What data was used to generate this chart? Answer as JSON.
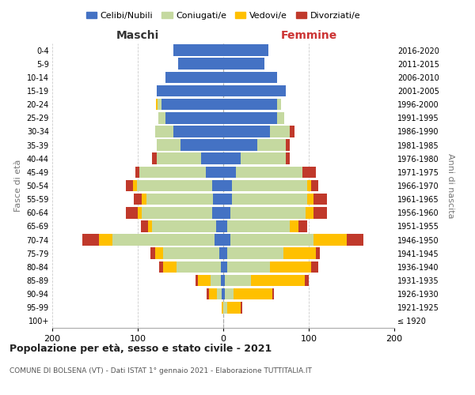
{
  "age_groups": [
    "100+",
    "95-99",
    "90-94",
    "85-89",
    "80-84",
    "75-79",
    "70-74",
    "65-69",
    "60-64",
    "55-59",
    "50-54",
    "45-49",
    "40-44",
    "35-39",
    "30-34",
    "25-29",
    "20-24",
    "15-19",
    "10-14",
    "5-9",
    "0-4"
  ],
  "birth_years": [
    "≤ 1920",
    "1921-1925",
    "1926-1930",
    "1931-1935",
    "1936-1940",
    "1941-1945",
    "1946-1950",
    "1951-1955",
    "1956-1960",
    "1961-1965",
    "1966-1970",
    "1971-1975",
    "1976-1980",
    "1981-1985",
    "1986-1990",
    "1991-1995",
    "1996-2000",
    "2001-2005",
    "2006-2010",
    "2011-2015",
    "2016-2020"
  ],
  "male_celibi": [
    0,
    0,
    2,
    3,
    3,
    5,
    10,
    8,
    13,
    12,
    13,
    20,
    26,
    50,
    58,
    68,
    72,
    78,
    68,
    53,
    58
  ],
  "male_coniugati": [
    0,
    0,
    5,
    12,
    52,
    65,
    120,
    75,
    82,
    78,
    88,
    78,
    52,
    28,
    22,
    8,
    5,
    0,
    0,
    0,
    0
  ],
  "male_vedovi": [
    0,
    2,
    10,
    15,
    15,
    10,
    15,
    5,
    5,
    5,
    5,
    0,
    0,
    0,
    0,
    0,
    2,
    0,
    0,
    0,
    0
  ],
  "male_divorziati": [
    0,
    0,
    2,
    2,
    5,
    5,
    20,
    8,
    14,
    10,
    8,
    5,
    5,
    0,
    0,
    0,
    0,
    0,
    0,
    0,
    0
  ],
  "female_nubili": [
    0,
    0,
    2,
    2,
    5,
    5,
    8,
    5,
    8,
    10,
    10,
    15,
    20,
    40,
    55,
    63,
    63,
    73,
    63,
    48,
    53
  ],
  "female_coniugate": [
    0,
    5,
    10,
    30,
    50,
    65,
    98,
    73,
    88,
    88,
    88,
    78,
    53,
    33,
    23,
    8,
    5,
    0,
    0,
    0,
    0
  ],
  "female_vedove": [
    0,
    15,
    45,
    63,
    48,
    38,
    38,
    10,
    10,
    8,
    5,
    0,
    0,
    0,
    0,
    0,
    0,
    0,
    0,
    0,
    0
  ],
  "female_divorziate": [
    0,
    2,
    2,
    5,
    8,
    5,
    20,
    10,
    15,
    15,
    8,
    15,
    5,
    5,
    5,
    0,
    0,
    0,
    0,
    0,
    0
  ],
  "color_celibi": "#4472C4",
  "color_coniugati": "#c5d9a0",
  "color_vedovi": "#ffc000",
  "color_divorziati": "#c0392b",
  "xlim": 200,
  "title": "Popolazione per età, sesso e stato civile - 2021",
  "subtitle": "COMUNE DI BOLSENA (VT) - Dati ISTAT 1° gennaio 2021 - Elaborazione TUTTITALIA.IT",
  "ylabel_left": "Fasce di età",
  "ylabel_right": "Anni di nascita",
  "label_maschi": "Maschi",
  "label_femmine": "Femmine",
  "legend_labels": [
    "Celibi/Nubili",
    "Coniugati/e",
    "Vedovi/e",
    "Divorziati/e"
  ],
  "background_color": "#ffffff",
  "xticks": [
    -200,
    -100,
    0,
    100,
    200
  ]
}
